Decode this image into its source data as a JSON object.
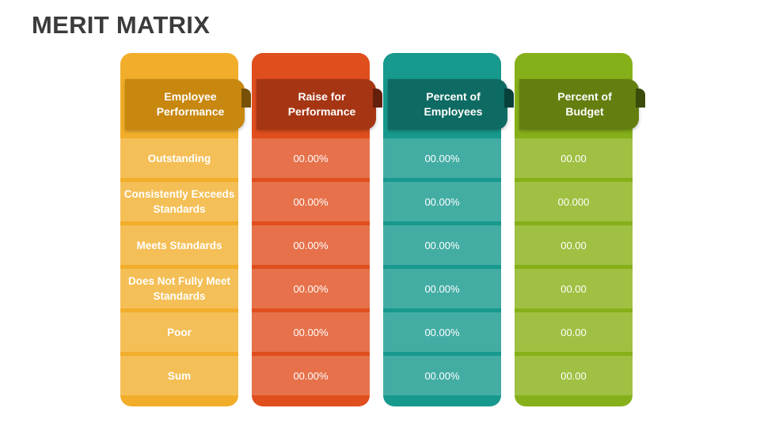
{
  "title": "MERIT MATRIX",
  "colors": {
    "col1": "#f2ae2a",
    "col1_cell": "#f4bf56",
    "col1_ribbon": "#c8870f",
    "col2": "#e04e1e",
    "col2_cell": "#e6714a",
    "col2_ribbon": "#a63513",
    "col3": "#17998d",
    "col3_cell": "#43ada4",
    "col3_ribbon": "#0e6b63",
    "col4": "#86b019",
    "col4_cell": "#a0c043",
    "col4_ribbon": "#647f10"
  },
  "columns": [
    {
      "header": "Employee Performance",
      "rows": [
        "Outstanding",
        "Consistently Exceeds Standards",
        "Meets Standards",
        "Does Not Fully Meet Standards",
        "Poor",
        "Sum"
      ]
    },
    {
      "header": "Raise for Performance",
      "rows": [
        "00.00%",
        "00.00%",
        "00.00%",
        "00.00%",
        "00.00%",
        "00.00%"
      ]
    },
    {
      "header": "Percent of Employees",
      "rows": [
        "00.00%",
        "00.00%",
        "00.00%",
        "00.00%",
        "00.00%",
        "00.00%"
      ]
    },
    {
      "header": "Percent of Budget",
      "rows": [
        "00.00",
        "00.000",
        "00.00",
        "00.00",
        "00.00",
        "00.00"
      ]
    }
  ]
}
